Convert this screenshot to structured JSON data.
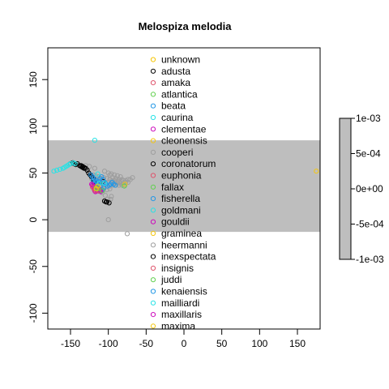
{
  "chart_data": {
    "type": "scatter",
    "title": "Melospiza melodia",
    "xlabel": "",
    "ylabel": "",
    "xlim": [
      -180,
      180
    ],
    "ylim": [
      -117,
      184
    ],
    "x_ticks": [
      -150,
      -100,
      -50,
      0,
      50,
      100,
      150
    ],
    "y_ticks": [
      -100,
      -50,
      0,
      50,
      100,
      150
    ],
    "grid": false,
    "background_band": {
      "from": -13,
      "to": 85,
      "color": "#bebebe"
    },
    "legend_position": "top-center",
    "legend": [
      {
        "name": "unknown",
        "color": "#f5c400"
      },
      {
        "name": "adusta",
        "color": "#000000"
      },
      {
        "name": "amaka",
        "color": "#df536b"
      },
      {
        "name": "atlantica",
        "color": "#61d04f"
      },
      {
        "name": "beata",
        "color": "#2297e6"
      },
      {
        "name": "caurina",
        "color": "#28e2e5"
      },
      {
        "name": "clementae",
        "color": "#cd0bbc"
      },
      {
        "name": "cleonensis",
        "color": "#f5c710"
      },
      {
        "name": "cooperi",
        "color": "#9e9e9e"
      },
      {
        "name": "coronatorum",
        "color": "#000000"
      },
      {
        "name": "euphonia",
        "color": "#df536b"
      },
      {
        "name": "fallax",
        "color": "#61d04f"
      },
      {
        "name": "fisherella",
        "color": "#2297e6"
      },
      {
        "name": "goldmani",
        "color": "#28e2e5"
      },
      {
        "name": "gouldii",
        "color": "#cd0bbc"
      },
      {
        "name": "graminea",
        "color": "#f5c710"
      },
      {
        "name": "heermanni",
        "color": "#9e9e9e"
      },
      {
        "name": "inexspectata",
        "color": "#000000"
      },
      {
        "name": "insignis",
        "color": "#df536b"
      },
      {
        "name": "juddi",
        "color": "#61d04f"
      },
      {
        "name": "kenaiensis",
        "color": "#2297e6"
      },
      {
        "name": "mailliardi",
        "color": "#28e2e5"
      },
      {
        "name": "maxillaris",
        "color": "#cd0bbc"
      },
      {
        "name": "maxima",
        "color": "#f5c710"
      }
    ],
    "series": [
      {
        "name": "cooperi",
        "color": "#9e9e9e",
        "points": [
          [
            -120,
            48
          ],
          [
            -117,
            47
          ],
          [
            -113,
            46
          ],
          [
            -110,
            44
          ],
          [
            -106,
            45
          ],
          [
            -102,
            44
          ],
          [
            -98,
            43
          ],
          [
            -95,
            42
          ],
          [
            -92,
            42
          ],
          [
            -89,
            41
          ],
          [
            -86,
            41
          ],
          [
            -83,
            41
          ],
          [
            -80,
            42
          ],
          [
            -77,
            42
          ],
          [
            -74,
            43
          ],
          [
            -71,
            43
          ],
          [
            -68,
            45
          ],
          [
            -122,
            44
          ],
          [
            -119,
            43
          ],
          [
            -116,
            43
          ],
          [
            -112,
            41
          ],
          [
            -108,
            40
          ],
          [
            -104,
            40
          ],
          [
            -100,
            40
          ],
          [
            -96,
            40
          ],
          [
            -92,
            39
          ],
          [
            -88,
            39
          ],
          [
            -84,
            39
          ],
          [
            -80,
            39
          ],
          [
            -77,
            40
          ],
          [
            -74,
            40
          ],
          [
            -110,
            37
          ],
          [
            -106,
            36
          ],
          [
            -102,
            36
          ],
          [
            -98,
            36
          ],
          [
            -94,
            37
          ],
          [
            -90,
            37
          ],
          [
            -86,
            37
          ],
          [
            -82,
            37
          ],
          [
            -78,
            37
          ],
          [
            -106,
            33
          ],
          [
            -102,
            32
          ],
          [
            -98,
            33
          ],
          [
            -100,
            50
          ],
          [
            -96,
            49
          ],
          [
            -92,
            48
          ],
          [
            -88,
            47
          ],
          [
            -84,
            46
          ],
          [
            -105,
            52
          ],
          [
            -118,
            55
          ],
          [
            -125,
            57
          ],
          [
            -130,
            58
          ],
          [
            -108,
            29
          ],
          [
            -104,
            26
          ],
          [
            -101,
            22
          ],
          [
            -99,
            19
          ],
          [
            -110,
            35
          ],
          [
            -115,
            38
          ],
          [
            -112,
            33
          ],
          [
            -96,
            25
          ],
          [
            -97,
            22
          ],
          [
            -100,
            0
          ],
          [
            -75,
            -15
          ],
          [
            -98,
            48
          ],
          [
            -94,
            45
          ],
          [
            -90,
            44
          ],
          [
            -86,
            43
          ],
          [
            -82,
            43
          ]
        ]
      },
      {
        "name": "adusta",
        "color": "#000000",
        "points": [
          [
            -150,
            60
          ],
          [
            -147,
            61
          ],
          [
            -145,
            60
          ],
          [
            -143,
            59
          ],
          [
            -141,
            60
          ],
          [
            -138,
            58
          ],
          [
            -136,
            58
          ],
          [
            -134,
            57
          ],
          [
            -132,
            56
          ],
          [
            -130,
            55
          ],
          [
            -128,
            53
          ],
          [
            -126,
            50
          ],
          [
            -124,
            48
          ],
          [
            -122,
            46
          ],
          [
            -120,
            44
          ],
          [
            -119,
            40
          ],
          [
            -117,
            37
          ],
          [
            -115,
            33
          ],
          [
            -113,
            31
          ],
          [
            -103,
            19
          ],
          [
            -105,
            20
          ],
          [
            -107,
            41
          ]
        ]
      },
      {
        "name": "fisherella",
        "color": "#2297e6",
        "points": [
          [
            -123,
            48
          ],
          [
            -121,
            46
          ],
          [
            -119,
            44
          ],
          [
            -117,
            42
          ],
          [
            -115,
            40
          ],
          [
            -113,
            38
          ],
          [
            -111,
            36
          ],
          [
            -119,
            38
          ],
          [
            -117,
            35
          ],
          [
            -115,
            31
          ],
          [
            -112,
            33
          ],
          [
            -110,
            31
          ],
          [
            -108,
            32
          ],
          [
            -106,
            34
          ],
          [
            -113,
            41
          ],
          [
            -111,
            44
          ],
          [
            -109,
            46
          ],
          [
            -107,
            43
          ],
          [
            -105,
            40
          ],
          [
            -103,
            38
          ],
          [
            -101,
            36
          ],
          [
            -99,
            37
          ],
          [
            -97,
            38
          ],
          [
            -95,
            40
          ],
          [
            -93,
            38
          ],
          [
            -91,
            37
          ],
          [
            -120,
            42
          ],
          [
            -118,
            40
          ]
        ]
      },
      {
        "name": "gouldii",
        "color": "#cd0bbc",
        "points": [
          [
            -122,
            38
          ],
          [
            -121,
            37
          ],
          [
            -120,
            36
          ],
          [
            -119,
            35
          ],
          [
            -118,
            34
          ],
          [
            -117,
            33
          ],
          [
            -116,
            32
          ],
          [
            -115,
            31
          ],
          [
            -114,
            32
          ],
          [
            -113,
            33
          ],
          [
            -112,
            32
          ],
          [
            -111,
            31
          ],
          [
            -110,
            30
          ],
          [
            -118,
            31
          ],
          [
            -117,
            30
          ]
        ]
      },
      {
        "name": "amaka",
        "color": "#df536b",
        "points": [
          [
            -121,
            35
          ],
          [
            -119,
            33
          ],
          [
            -117,
            31
          ],
          [
            -116,
            34
          ],
          [
            -114,
            35
          ],
          [
            -113,
            34
          ],
          [
            -112,
            31
          ]
        ]
      },
      {
        "name": "caurina",
        "color": "#28e2e5",
        "points": [
          [
            -172,
            52
          ],
          [
            -168,
            53
          ],
          [
            -164,
            54
          ],
          [
            -160,
            55
          ],
          [
            -158,
            56
          ],
          [
            -156,
            57
          ],
          [
            -154,
            58
          ],
          [
            -152,
            59
          ],
          [
            -150,
            60
          ],
          [
            -146,
            61
          ],
          [
            -144,
            60
          ],
          [
            -118,
            85
          ],
          [
            -114,
            49
          ],
          [
            -112,
            39
          ],
          [
            -105,
            39
          ]
        ]
      },
      {
        "name": "fallax",
        "color": "#61d04f",
        "points": [
          [
            -116,
            34
          ],
          [
            -114,
            33
          ],
          [
            -108,
            31
          ]
        ]
      },
      {
        "name": "graminea",
        "color": "#f5c710",
        "points": [
          [
            -116,
            33
          ],
          [
            -114,
            36
          ],
          [
            -78,
            38
          ],
          [
            175,
            52
          ]
        ]
      },
      {
        "name": "inexspectata",
        "color": "#000000",
        "points": [
          [
            -136,
            57
          ],
          [
            -134,
            56
          ],
          [
            -132,
            55
          ],
          [
            -102,
            19
          ],
          [
            -99,
            18
          ]
        ]
      },
      {
        "name": "atlantica",
        "color": "#61d04f",
        "points": [
          [
            -79,
            36
          ]
        ]
      }
    ]
  },
  "colorbar": {
    "ticks": [
      "1e-03",
      "5e-04",
      "0e+00",
      "-5e-04",
      "-1e-03"
    ],
    "color": "#bebebe"
  }
}
